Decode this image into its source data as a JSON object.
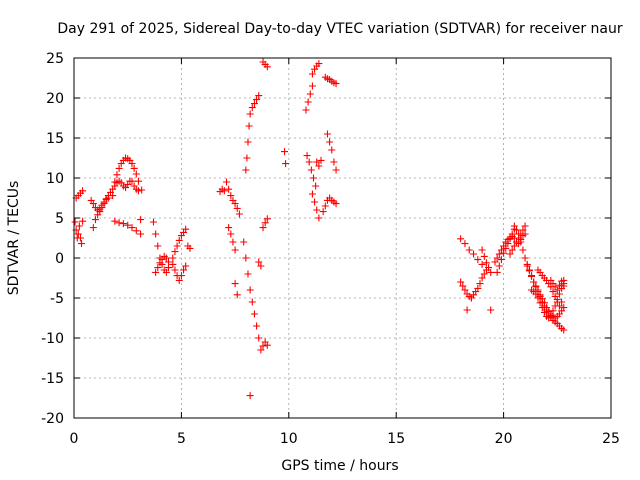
{
  "colors": {
    "points": "#ff0000",
    "grid": "#a0a0a0",
    "axis": "#000000",
    "background": "#ffffff"
  },
  "chart_data": {
    "type": "scatter",
    "title": "Day 291 of 2025, Sidereal Day-to-day VTEC variation (SDTVAR) for receiver naur",
    "xlabel": "GPS time / hours",
    "ylabel": "SDTVAR / TECUs",
    "xlim": [
      0,
      25
    ],
    "ylim": [
      -20,
      25
    ],
    "xticks": [
      0,
      5,
      10,
      15,
      20,
      25
    ],
    "yticks": [
      -20,
      -15,
      -10,
      -5,
      0,
      5,
      10,
      15,
      20,
      25
    ],
    "grid": true,
    "marker": "plus",
    "segments": [
      {
        "x": [
          0.05,
          0.1,
          0.15,
          0.2,
          0.25,
          0.3,
          0.35,
          0.4
        ],
        "y": [
          4.5,
          3.5,
          2.5,
          3.0,
          4.0,
          2.5,
          1.8,
          4.6
        ]
      },
      {
        "x": [
          0.1,
          0.2,
          0.3,
          0.4
        ],
        "y": [
          7.5,
          7.8,
          8.1,
          8.4
        ]
      },
      {
        "x": [
          0.9,
          1.0,
          1.1,
          1.2,
          1.3,
          1.4,
          1.5,
          1.6,
          1.7,
          1.8,
          1.9,
          2.0,
          2.1,
          2.2,
          2.3,
          2.4,
          2.5,
          2.6,
          2.7,
          2.8,
          2.9,
          3.0
        ],
        "y": [
          3.8,
          4.8,
          5.4,
          6.1,
          6.6,
          7.0,
          7.4,
          7.8,
          8.2,
          8.6,
          9.0,
          9.4,
          9.6,
          9.4,
          9.0,
          8.8,
          9.2,
          9.6,
          9.6,
          9.0,
          8.6,
          8.4
        ]
      },
      {
        "x": [
          0.8,
          0.9,
          1.0,
          1.1,
          1.2,
          1.3,
          1.4,
          1.5,
          1.6
        ],
        "y": [
          7.2,
          6.8,
          6.3,
          6.0,
          5.8,
          6.3,
          6.8,
          7.3,
          7.5
        ]
      },
      {
        "x": [
          1.8,
          1.9,
          2.0,
          2.1,
          2.2,
          2.3,
          2.4,
          2.5,
          2.6,
          2.7,
          2.8,
          2.9,
          3.0
        ],
        "y": [
          7.8,
          9.5,
          10.4,
          11.2,
          11.8,
          12.2,
          12.5,
          12.4,
          12.2,
          11.8,
          11.2,
          10.5,
          9.6
        ]
      },
      {
        "x": [
          1.9,
          2.1,
          2.3,
          2.5,
          2.7,
          2.9,
          3.1
        ],
        "y": [
          4.6,
          4.4,
          4.3,
          4.1,
          3.8,
          3.4,
          3.0
        ]
      },
      {
        "x": [
          3.1,
          3.15
        ],
        "y": [
          4.8,
          8.5
        ]
      },
      {
        "x": [
          3.7,
          3.8,
          3.9,
          4.0,
          4.1,
          4.2,
          4.3,
          4.4
        ],
        "y": [
          4.5,
          3.0,
          1.5,
          0.0,
          -0.8,
          -1.5,
          -1.8,
          -1.2
        ]
      },
      {
        "x": [
          3.8,
          3.9,
          4.0,
          4.1,
          4.2,
          4.3,
          4.4
        ],
        "y": [
          -1.8,
          -1.2,
          -0.6,
          -0.2,
          0.2,
          0.0,
          -0.5
        ]
      },
      {
        "x": [
          4.6,
          4.7,
          4.8,
          4.9,
          5.0,
          5.1,
          5.2
        ],
        "y": [
          -0.8,
          -1.5,
          -2.2,
          -2.8,
          -2.2,
          -1.5,
          -1.0
        ]
      },
      {
        "x": [
          4.6,
          4.7,
          4.8,
          4.9,
          5.0,
          5.1,
          5.2
        ],
        "y": [
          0.0,
          0.8,
          1.5,
          2.2,
          2.8,
          3.2,
          3.6
        ]
      },
      {
        "x": [
          5.3,
          5.4
        ],
        "y": [
          1.5,
          1.2
        ]
      },
      {
        "x": [
          6.8,
          6.9,
          7.0
        ],
        "y": [
          8.3,
          8.6,
          8.4
        ]
      },
      {
        "x": [
          7.1,
          7.2,
          7.3,
          7.4,
          7.5,
          7.6,
          7.7
        ],
        "y": [
          9.5,
          8.6,
          7.8,
          7.2,
          6.8,
          6.2,
          5.5
        ]
      },
      {
        "x": [
          7.2,
          7.3,
          7.4,
          7.5
        ],
        "y": [
          3.8,
          3.0,
          2.0,
          1.0
        ]
      },
      {
        "x": [
          7.5,
          7.6
        ],
        "y": [
          -3.2,
          -4.6
        ]
      },
      {
        "x": [
          7.9,
          8.0,
          8.1,
          8.2,
          8.3,
          8.4,
          8.5,
          8.6,
          8.7
        ],
        "y": [
          2.0,
          0.0,
          -2.0,
          -4.0,
          -5.5,
          -7.0,
          -8.5,
          -10.0,
          -11.5
        ]
      },
      {
        "x": [
          8.0,
          8.05,
          8.1,
          8.15,
          8.2,
          8.3,
          8.4,
          8.5,
          8.6
        ],
        "y": [
          11.0,
          12.5,
          14.5,
          16.5,
          18.0,
          18.8,
          19.3,
          19.8,
          20.3
        ]
      },
      {
        "x": [
          8.2
        ],
        "y": [
          -17.2
        ]
      },
      {
        "x": [
          8.6,
          8.7
        ],
        "y": [
          -0.5,
          -1.0
        ]
      },
      {
        "x": [
          8.8,
          8.9,
          9.0
        ],
        "y": [
          -11.0,
          -10.5,
          -10.9
        ]
      },
      {
        "x": [
          8.8,
          8.9,
          9.0
        ],
        "y": [
          3.8,
          4.4,
          4.9
        ]
      },
      {
        "x": [
          8.8,
          8.9,
          9.0
        ],
        "y": [
          24.5,
          24.2,
          23.9
        ]
      },
      {
        "x": [
          9.8,
          9.85
        ],
        "y": [
          13.3,
          11.8
        ]
      },
      {
        "x": [
          10.8,
          10.9,
          11.0,
          11.1
        ],
        "y": [
          18.5,
          19.5,
          20.5,
          21.5
        ]
      },
      {
        "x": [
          10.85,
          10.95,
          11.05,
          11.15,
          11.25
        ],
        "y": [
          12.8,
          12.0,
          11.0,
          10.0,
          9.0
        ]
      },
      {
        "x": [
          11.1,
          11.2,
          11.3,
          11.4
        ],
        "y": [
          23.0,
          23.6,
          24.0,
          24.3
        ]
      },
      {
        "x": [
          11.1,
          11.2,
          11.3,
          11.4
        ],
        "y": [
          8.0,
          7.0,
          6.0,
          5.0
        ]
      },
      {
        "x": [
          11.3,
          11.4,
          11.5
        ],
        "y": [
          12.0,
          11.5,
          12.2
        ]
      },
      {
        "x": [
          11.6,
          11.7,
          11.8,
          11.9,
          12.0,
          12.1,
          12.2
        ],
        "y": [
          5.8,
          6.5,
          7.2,
          7.5,
          7.2,
          7.0,
          6.8
        ]
      },
      {
        "x": [
          11.7,
          11.8,
          11.9,
          12.0,
          12.1,
          12.2
        ],
        "y": [
          22.6,
          22.4,
          22.3,
          22.1,
          21.9,
          21.8
        ]
      },
      {
        "x": [
          11.8,
          11.9,
          12.0,
          12.1,
          12.2
        ],
        "y": [
          15.5,
          14.5,
          13.5,
          12.0,
          11.0
        ]
      },
      {
        "x": [
          18.0,
          18.1,
          18.2,
          18.3,
          18.4,
          18.5
        ],
        "y": [
          -3.0,
          -3.5,
          -4.0,
          -4.5,
          -4.8,
          -5.0
        ]
      },
      {
        "x": [
          18.0,
          18.2,
          18.4,
          18.6,
          18.8,
          19.0,
          19.2
        ],
        "y": [
          2.4,
          1.8,
          1.0,
          0.5,
          -0.2,
          -0.8,
          -1.5
        ]
      },
      {
        "x": [
          18.3
        ],
        "y": [
          -6.5
        ]
      },
      {
        "x": [
          18.5,
          18.6,
          18.7,
          18.8,
          18.9,
          19.0,
          19.1
        ],
        "y": [
          -5.0,
          -4.6,
          -4.2,
          -3.8,
          -3.2,
          -2.5,
          -2.0
        ]
      },
      {
        "x": [
          19.0,
          19.1,
          19.2,
          19.3,
          19.4
        ],
        "y": [
          1.0,
          0.2,
          -0.6,
          -1.2,
          -1.8
        ]
      },
      {
        "x": [
          19.4
        ],
        "y": [
          -6.5
        ]
      },
      {
        "x": [
          19.6,
          19.7,
          19.8,
          19.9,
          20.0,
          20.1,
          20.2,
          20.3,
          20.4,
          20.5,
          20.6,
          20.7,
          20.8,
          20.9,
          21.0
        ],
        "y": [
          -0.5,
          0.0,
          0.5,
          1.0,
          1.5,
          2.0,
          2.3,
          2.5,
          2.7,
          2.5,
          2.0,
          1.8,
          2.3,
          2.8,
          3.0
        ]
      },
      {
        "x": [
          19.7,
          19.8,
          19.9,
          20.0,
          20.1,
          20.2,
          20.3,
          20.4,
          20.5
        ],
        "y": [
          -1.8,
          -1.0,
          -0.2,
          0.6,
          1.2,
          1.8,
          2.4,
          3.0,
          3.6
        ]
      },
      {
        "x": [
          20.3,
          20.4,
          20.5,
          20.6,
          20.7,
          20.8,
          20.9,
          21.0
        ],
        "y": [
          0.5,
          1.0,
          1.5,
          2.0,
          2.5,
          3.0,
          3.5,
          4.0
        ]
      },
      {
        "x": [
          20.5,
          20.6,
          20.7,
          20.8,
          20.9,
          21.0,
          21.1,
          21.2,
          21.3,
          21.4,
          21.5,
          21.6,
          21.7,
          21.8,
          21.9,
          22.0,
          22.1,
          22.2,
          22.3,
          22.4,
          22.5,
          22.6,
          22.7,
          22.8
        ],
        "y": [
          4.0,
          3.5,
          3.0,
          2.0,
          1.0,
          0.0,
          -0.8,
          -1.5,
          -2.2,
          -3.0,
          -3.6,
          -4.2,
          -4.8,
          -5.5,
          -6.0,
          -6.5,
          -7.0,
          -7.4,
          -7.8,
          -8.0,
          -8.2,
          -8.5,
          -8.8,
          -9.0
        ]
      },
      {
        "x": [
          21.1,
          21.2,
          21.3,
          21.4,
          21.5,
          21.6,
          21.7,
          21.8,
          21.9,
          22.0,
          22.1,
          22.2,
          22.3,
          22.4,
          22.5,
          22.6,
          22.7,
          22.8
        ],
        "y": [
          -1.0,
          -1.6,
          -2.3,
          -3.0,
          -3.5,
          -4.0,
          -4.6,
          -5.1,
          -5.6,
          -6.2,
          -6.7,
          -7.0,
          -7.3,
          -7.5,
          -7.3,
          -7.0,
          -6.6,
          -6.2
        ]
      },
      {
        "x": [
          21.3,
          21.4,
          21.5,
          21.6,
          21.7,
          21.8,
          21.9,
          22.0,
          22.1,
          22.2,
          22.3,
          22.4,
          22.5,
          22.6,
          22.7,
          22.8
        ],
        "y": [
          -4.0,
          -4.2,
          -4.5,
          -5.0,
          -5.6,
          -6.2,
          -6.8,
          -7.3,
          -7.5,
          -7.2,
          -6.6,
          -6.0,
          -5.2,
          -4.5,
          -3.8,
          -3.2
        ]
      },
      {
        "x": [
          21.6,
          21.7,
          21.8,
          21.9,
          22.0,
          22.1,
          22.2,
          22.3,
          22.4,
          22.5,
          22.6,
          22.7,
          22.8
        ],
        "y": [
          -1.5,
          -1.8,
          -2.2,
          -2.5,
          -2.8,
          -3.2,
          -3.6,
          -4.2,
          -4.8,
          -5.5,
          -6.0,
          -5.5,
          -3.5
        ]
      },
      {
        "x": [
          22.2,
          22.3,
          22.4,
          22.5,
          22.6,
          22.7,
          22.8
        ],
        "y": [
          -2.8,
          -3.2,
          -3.6,
          -4.0,
          -3.4,
          -2.9,
          -2.8
        ]
      }
    ]
  }
}
